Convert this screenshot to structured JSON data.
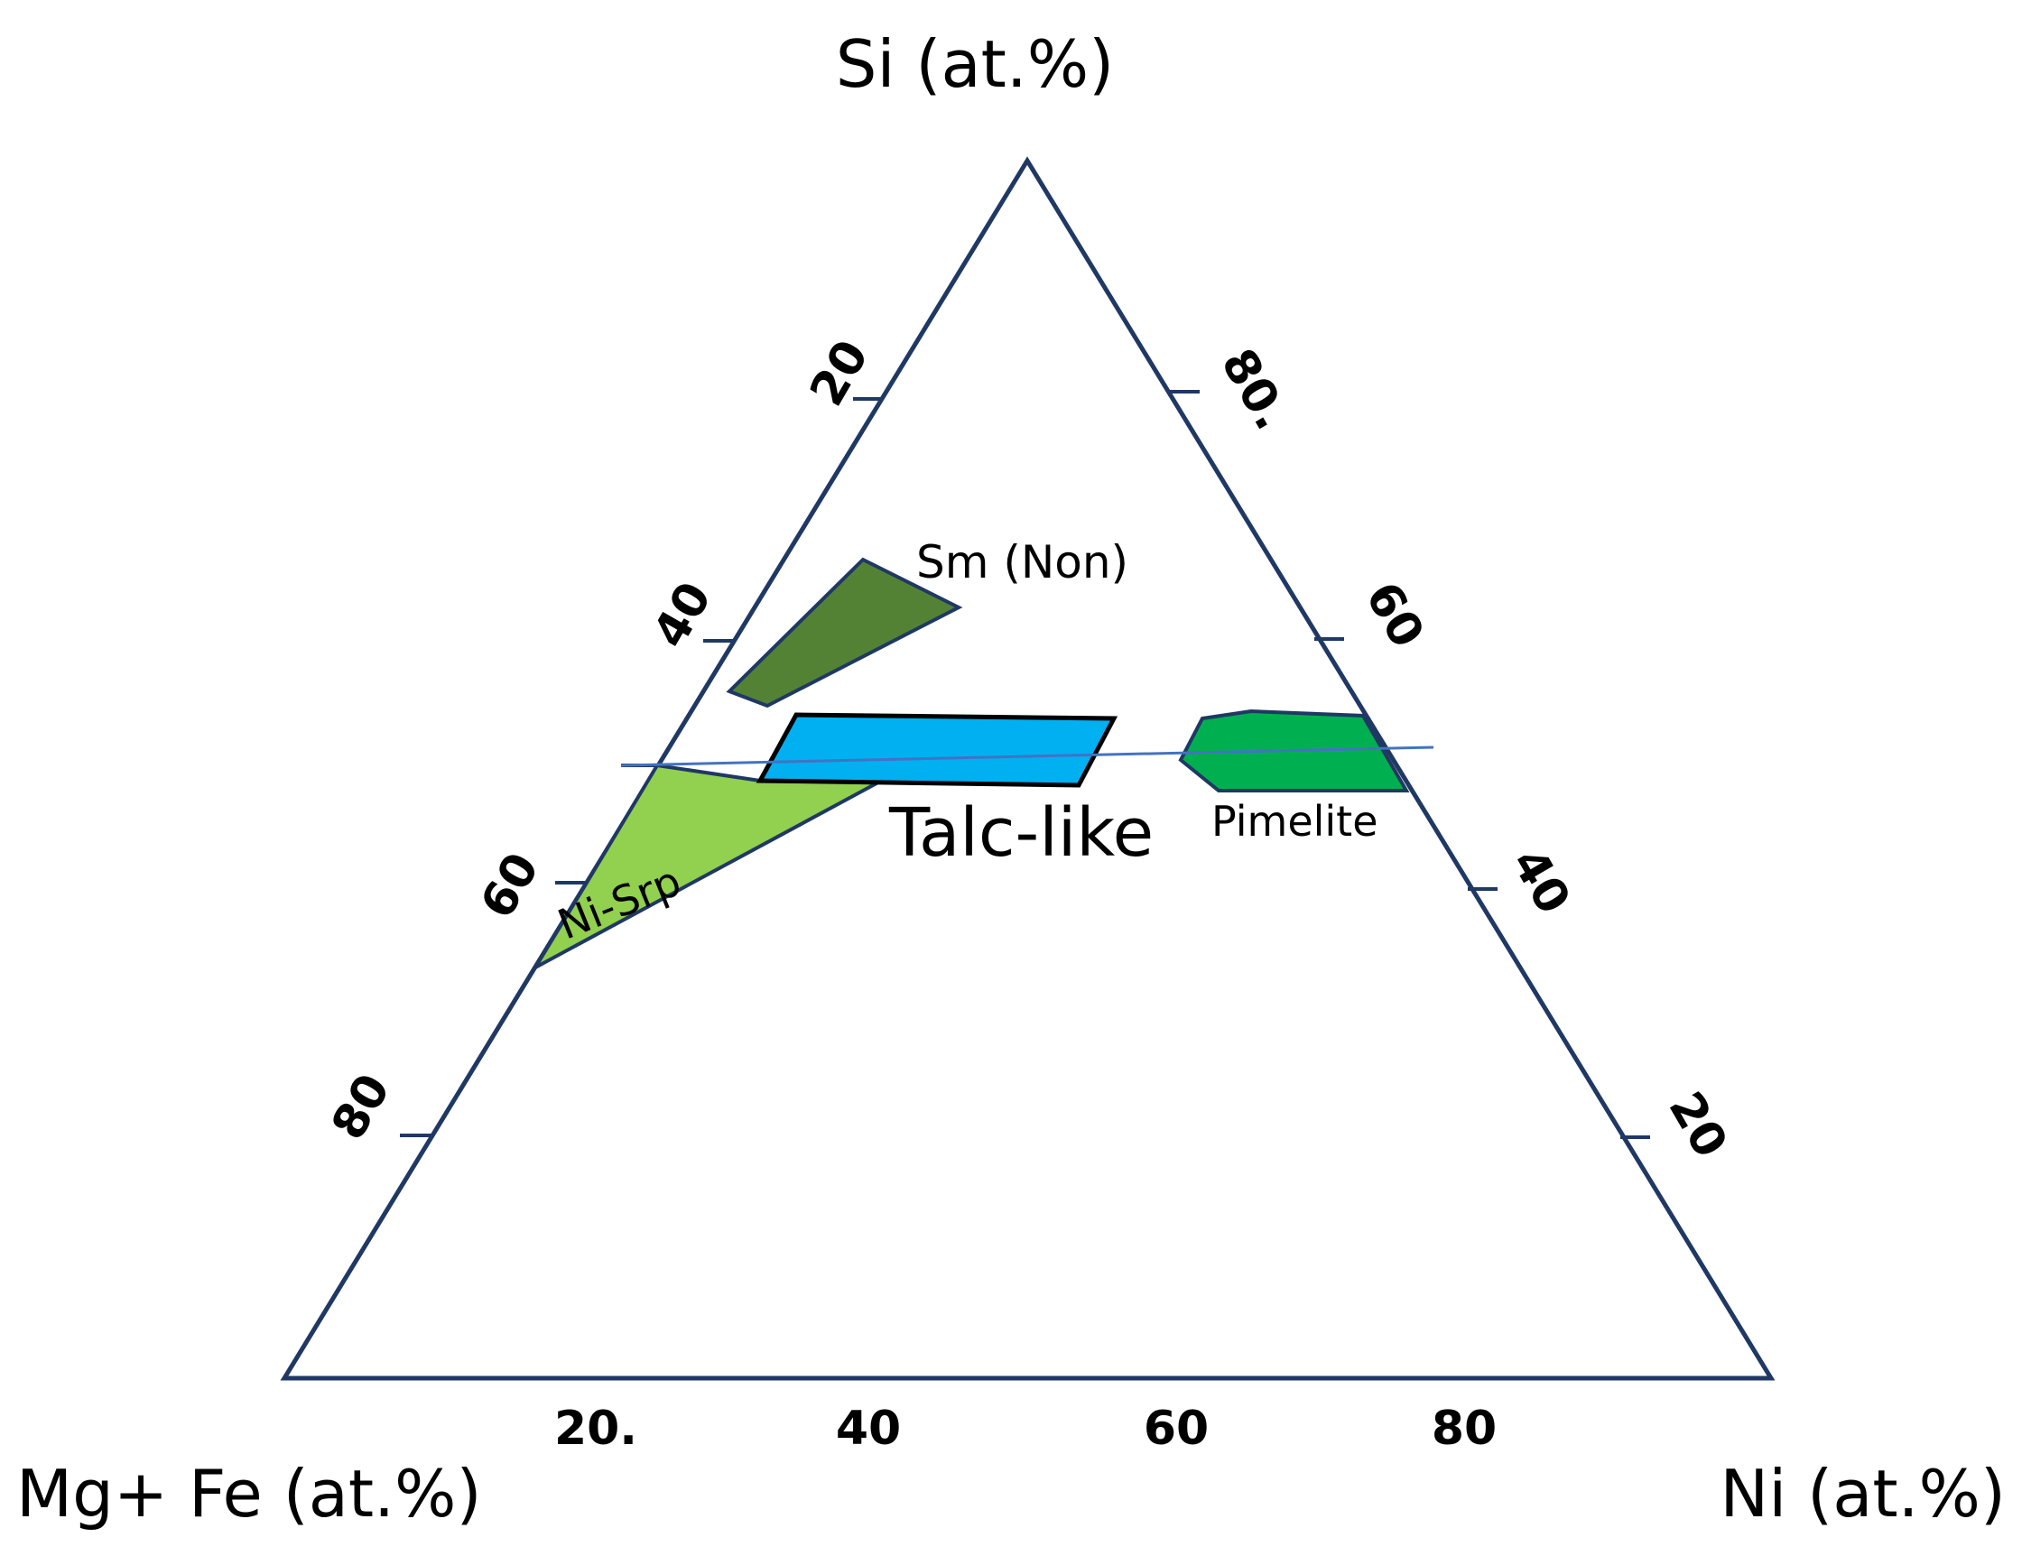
{
  "chart_data": {
    "type": "ternary",
    "apex_labels": {
      "top": "Si (at.%)",
      "bottom_left": "Mg+ Fe (at.%)",
      "bottom_right": "Ni (at.%)"
    },
    "tick_labels": {
      "left": [
        "20",
        "40",
        "60",
        "80"
      ],
      "right": [
        "80.",
        "60",
        "40",
        "20"
      ],
      "bottom": [
        "20.",
        "40",
        "60",
        "80"
      ]
    },
    "fields": [
      {
        "name": "Sm (Non)",
        "color": "#548235"
      },
      {
        "name": "Talc-like",
        "color": "#00B0F0"
      },
      {
        "name": "Ni-Srp",
        "color": "#92D050"
      },
      {
        "name": "Pimelite",
        "color": "#00B050"
      }
    ],
    "frame_color": "#1F3864",
    "reference_line_color": "#4472C4"
  }
}
